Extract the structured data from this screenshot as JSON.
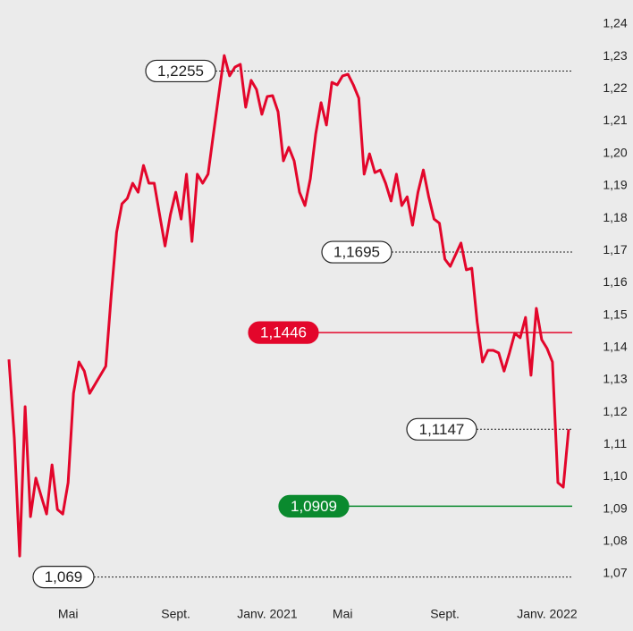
{
  "chart_data": {
    "type": "line",
    "categories": [
      null,
      null,
      null,
      null,
      null,
      null,
      null,
      null,
      null,
      null,
      null,
      "Mai",
      null,
      null,
      null,
      null,
      null,
      null,
      null,
      null,
      null,
      null,
      null,
      null,
      null,
      null,
      null,
      null,
      null,
      null,
      null,
      "Sept.",
      null,
      null,
      null,
      null,
      null,
      null,
      null,
      null,
      null,
      null,
      null,
      null,
      null,
      null,
      null,
      null,
      "Janv. 2021",
      null,
      null,
      null,
      null,
      null,
      null,
      null,
      null,
      null,
      null,
      null,
      null,
      null,
      "Mai",
      null,
      null,
      null,
      null,
      null,
      null,
      null,
      null,
      null,
      null,
      null,
      null,
      null,
      null,
      null,
      null,
      null,
      null,
      "Sept.",
      null,
      null,
      null,
      null,
      null,
      null,
      null,
      null,
      null,
      null,
      null,
      null,
      null,
      null,
      null,
      null,
      null,
      null,
      "Janv. 2022",
      null,
      null,
      null,
      null
    ],
    "series": [
      {
        "color": "#e3062b",
        "values": [
          1.1363,
          1.112,
          1.0755,
          1.1217,
          1.0877,
          1.0996,
          1.094,
          1.0885,
          1.1037,
          1.0899,
          1.0885,
          1.0982,
          1.1258,
          1.1355,
          1.1327,
          1.1258,
          1.1286,
          1.1314,
          1.1342,
          1.1562,
          1.1756,
          1.1844,
          1.1861,
          1.1908,
          1.188,
          1.1963,
          1.1908,
          1.1908,
          1.1811,
          1.1714,
          1.1811,
          1.188,
          1.1797,
          1.1936,
          1.1728,
          1.1936,
          1.1908,
          1.1936,
          1.206,
          1.2184,
          1.2303,
          1.224,
          1.2267,
          1.2276,
          1.2143,
          1.2226,
          1.2198,
          1.2121,
          1.2176,
          1.2179,
          1.2129,
          1.1977,
          1.2019,
          1.1977,
          1.188,
          1.1839,
          1.1922,
          1.206,
          1.2157,
          1.2088,
          1.222,
          1.2212,
          1.224,
          1.2245,
          1.2212,
          1.2171,
          1.1936,
          1.1999,
          1.1941,
          1.1949,
          1.1908,
          1.1853,
          1.1936,
          1.1839,
          1.1866,
          1.1778,
          1.188,
          1.1949,
          1.1866,
          1.1797,
          1.1784,
          1.1673,
          1.1651,
          1.1687,
          1.1723,
          1.164,
          1.1645,
          1.1479,
          1.1355,
          1.1391,
          1.1391,
          1.1383,
          1.1327,
          1.1383,
          1.1444,
          1.143,
          1.1493,
          1.1314,
          1.1521,
          1.1424,
          1.1397,
          1.1355,
          1.0982,
          1.0968,
          1.1147
        ]
      }
    ],
    "ylim": [
      1.07,
      1.24
    ],
    "yticks": [
      {
        "value": 1.07,
        "label": "1,07"
      },
      {
        "value": 1.08,
        "label": "1,08"
      },
      {
        "value": 1.09,
        "label": "1,09"
      },
      {
        "value": 1.1,
        "label": "1,10"
      },
      {
        "value": 1.11,
        "label": "1,11"
      },
      {
        "value": 1.12,
        "label": "1,12"
      },
      {
        "value": 1.13,
        "label": "1,13"
      },
      {
        "value": 1.14,
        "label": "1,14"
      },
      {
        "value": 1.15,
        "label": "1,15"
      },
      {
        "value": 1.16,
        "label": "1,16"
      },
      {
        "value": 1.17,
        "label": "1,17"
      },
      {
        "value": 1.18,
        "label": "1,18"
      },
      {
        "value": 1.19,
        "label": "1,19"
      },
      {
        "value": 1.2,
        "label": "1,20"
      },
      {
        "value": 1.21,
        "label": "1,21"
      },
      {
        "value": 1.22,
        "label": "1,22"
      },
      {
        "value": 1.23,
        "label": "1,23"
      },
      {
        "value": 1.24,
        "label": "1,24"
      }
    ],
    "annotations": [
      {
        "value": 1.2255,
        "label": "1,2255",
        "color": "#222222",
        "style": "dotted"
      },
      {
        "value": 1.1695,
        "label": "1,1695",
        "color": "#222222",
        "style": "dotted"
      },
      {
        "value": 1.1446,
        "label": "1,1446",
        "color": "#e3062b",
        "style": "solid"
      },
      {
        "value": 1.1147,
        "label": "1,1147",
        "color": "#222222",
        "style": "dotted"
      },
      {
        "value": 1.0909,
        "label": "1,0909",
        "color": "#0a8a2e",
        "style": "solid"
      },
      {
        "value": 1.069,
        "label": "1,069",
        "color": "#222222",
        "style": "dotted"
      }
    ]
  }
}
